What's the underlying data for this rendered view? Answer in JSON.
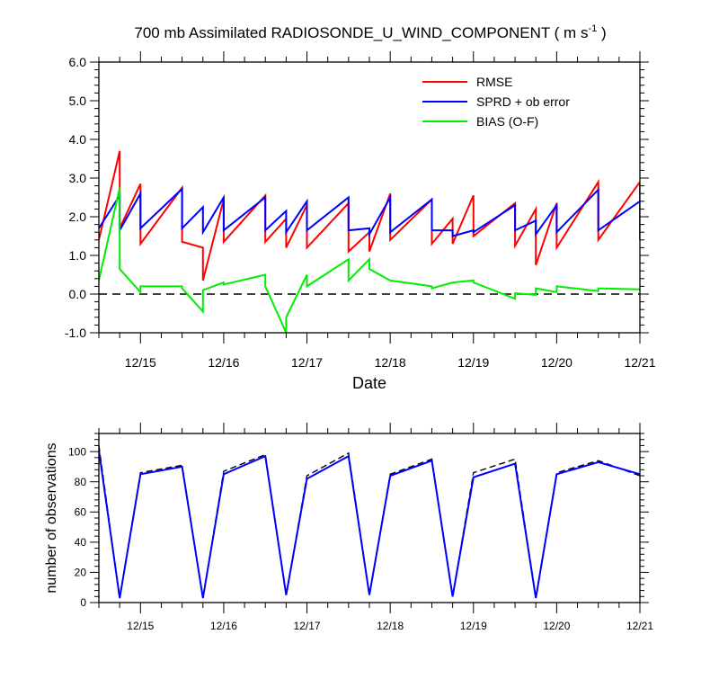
{
  "figure": {
    "title_main": "700 mb Assimilated RADIOSONDE_U_WIND_COMPONENT ( m s",
    "title_sup": "-1",
    "title_end": " )"
  },
  "chart_data": [
    {
      "type": "line",
      "title": "700 mb Assimilated RADIOSONDE_U_WIND_COMPONENT ( m s-1 )",
      "xlabel": "Date",
      "ylabel": "",
      "xlim": [
        14.5,
        21.0
      ],
      "ylim": [
        -1.0,
        6.0
      ],
      "y_ticks": [
        -1.0,
        0.0,
        1.0,
        2.0,
        3.0,
        4.0,
        5.0,
        6.0
      ],
      "y_tick_labels": [
        "-1.0",
        "0.0",
        "1.0",
        "2.0",
        "3.0",
        "4.0",
        "5.0",
        "6.0"
      ],
      "x_ticks": [
        15,
        16,
        17,
        18,
        19,
        20,
        21
      ],
      "x_tick_labels": [
        "12/15",
        "12/16",
        "12/17",
        "12/18",
        "12/19",
        "12/20",
        "12/21"
      ],
      "zero_line": true,
      "legend_position": "top-right",
      "series": [
        {
          "name": "RMSE",
          "color": "#ff0000",
          "x": [
            14.5,
            14.75,
            14.75,
            15.0,
            15.0,
            15.5,
            15.5,
            15.75,
            15.75,
            16.0,
            16.0,
            16.5,
            16.5,
            16.75,
            16.75,
            17.0,
            17.0,
            17.5,
            17.5,
            17.75,
            17.75,
            18.0,
            18.0,
            18.5,
            18.5,
            18.75,
            18.75,
            19.0,
            19.0,
            19.5,
            19.5,
            19.75,
            19.75,
            20.0,
            20.0,
            20.5,
            20.5,
            21.0,
            21.0
          ],
          "y": [
            1.4,
            3.7,
            1.7,
            2.85,
            1.3,
            2.75,
            1.35,
            1.2,
            0.35,
            2.45,
            1.35,
            2.55,
            1.35,
            1.95,
            1.2,
            2.3,
            1.2,
            2.35,
            1.1,
            1.6,
            1.1,
            2.6,
            1.4,
            2.45,
            1.3,
            1.95,
            1.3,
            2.55,
            1.5,
            2.35,
            1.25,
            2.2,
            0.75,
            2.35,
            1.2,
            2.9,
            1.4,
            2.9,
            1.4
          ]
        },
        {
          "name": "SPRD + ob error",
          "color": "#0000ff",
          "x": [
            14.5,
            14.75,
            14.75,
            15.0,
            15.0,
            15.5,
            15.5,
            15.75,
            15.75,
            16.0,
            16.0,
            16.5,
            16.5,
            16.75,
            16.75,
            17.0,
            17.0,
            17.5,
            17.5,
            17.75,
            17.75,
            18.0,
            18.0,
            18.5,
            18.5,
            18.75,
            18.75,
            19.0,
            19.0,
            19.5,
            19.5,
            19.75,
            19.75,
            20.0,
            20.0,
            20.5,
            20.5,
            21.0
          ],
          "y": [
            1.7,
            2.55,
            1.65,
            2.6,
            1.7,
            2.72,
            1.7,
            2.25,
            1.6,
            2.5,
            1.65,
            2.5,
            1.65,
            2.15,
            1.6,
            2.4,
            1.65,
            2.5,
            1.65,
            1.7,
            1.55,
            2.5,
            1.6,
            2.45,
            1.65,
            1.65,
            1.5,
            1.65,
            1.6,
            2.3,
            1.65,
            1.9,
            1.55,
            2.3,
            1.6,
            2.7,
            1.65,
            2.4
          ]
        },
        {
          "name": "BIAS (O-F)",
          "color": "#00ee00",
          "x": [
            14.5,
            14.75,
            14.75,
            15.0,
            15.0,
            15.5,
            15.5,
            15.75,
            15.75,
            16.0,
            16.0,
            16.5,
            16.5,
            16.75,
            16.75,
            17.0,
            17.0,
            17.5,
            17.5,
            17.75,
            17.75,
            18.0,
            18.0,
            18.5,
            18.5,
            18.75,
            18.75,
            19.0,
            19.0,
            19.5,
            19.5,
            19.75,
            19.75,
            20.0,
            20.0,
            20.5,
            20.5,
            21.0
          ],
          "y": [
            0.35,
            2.75,
            0.65,
            0.05,
            0.2,
            0.2,
            0.15,
            -0.45,
            0.1,
            0.3,
            0.25,
            0.5,
            0.2,
            -1.0,
            -0.6,
            0.5,
            0.2,
            0.9,
            0.35,
            0.9,
            0.65,
            0.35,
            0.35,
            0.2,
            0.15,
            0.3,
            0.3,
            0.35,
            0.3,
            -0.12,
            0.02,
            -0.02,
            0.15,
            0.05,
            0.2,
            0.08,
            0.15,
            0.12
          ]
        }
      ]
    },
    {
      "type": "line",
      "title": "",
      "xlabel": "",
      "ylabel": "number of observations",
      "xlim": [
        14.5,
        21.0
      ],
      "ylim": [
        0,
        112
      ],
      "y_ticks": [
        0,
        20,
        40,
        60,
        80,
        100
      ],
      "y_tick_labels": [
        "0",
        "20",
        "40",
        "60",
        "80",
        "100"
      ],
      "x_ticks": [
        15,
        16,
        17,
        18,
        19,
        20,
        21
      ],
      "x_tick_labels": [
        "12/15",
        "12/16",
        "12/17",
        "12/18",
        "12/19",
        "12/20",
        "12/21"
      ],
      "series": [
        {
          "color": "#000000",
          "dashed": true,
          "x": [
            14.5,
            14.75,
            15.0,
            15.5,
            15.75,
            16.0,
            16.5,
            16.75,
            17.0,
            17.5,
            17.75,
            18.0,
            18.5,
            18.75,
            19.0,
            19.5,
            19.75,
            20.0,
            20.5,
            21.0
          ],
          "y": [
            104,
            3,
            86,
            91,
            3,
            87,
            98,
            5,
            84,
            99,
            5,
            85,
            95,
            4,
            86,
            95,
            3,
            86,
            94,
            84
          ]
        },
        {
          "color": "#0000ff",
          "dashed": false,
          "x": [
            14.5,
            14.75,
            15.0,
            15.5,
            15.75,
            16.0,
            16.5,
            16.75,
            17.0,
            17.5,
            17.75,
            18.0,
            18.5,
            18.75,
            19.0,
            19.5,
            19.75,
            20.0,
            20.5,
            21.0
          ],
          "y": [
            101,
            3,
            85,
            90,
            3,
            85,
            97,
            5,
            82,
            97,
            5,
            84,
            94,
            4,
            83,
            92,
            3,
            85,
            93,
            85
          ]
        }
      ]
    }
  ]
}
